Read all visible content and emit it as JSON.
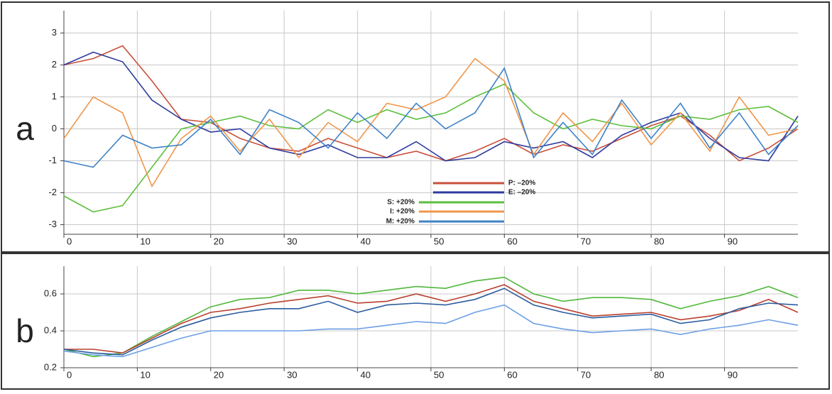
{
  "chart_data": [
    {
      "type": "line",
      "panel_label": "a",
      "x": [
        0,
        4,
        8,
        12,
        16,
        20,
        24,
        28,
        32,
        36,
        40,
        44,
        48,
        52,
        56,
        60,
        64,
        68,
        72,
        76,
        80,
        84,
        88,
        92,
        96,
        100
      ],
      "series": [
        {
          "name": "P: –20%",
          "color": "#c8503a",
          "values": [
            2.0,
            2.2,
            2.6,
            1.5,
            0.3,
            0.2,
            -0.3,
            -0.6,
            -0.7,
            -0.3,
            -0.6,
            -0.9,
            -0.7,
            -1.0,
            -0.7,
            -0.3,
            -0.8,
            -0.5,
            -0.7,
            -0.3,
            0.1,
            0.4,
            -0.2,
            -1.0,
            -0.6,
            0.0
          ]
        },
        {
          "name": "E: –20%",
          "color": "#2e3a9e",
          "values": [
            2.0,
            2.4,
            2.1,
            0.9,
            0.3,
            -0.1,
            0.0,
            -0.6,
            -0.8,
            -0.5,
            -0.9,
            -0.9,
            -0.4,
            -1.0,
            -0.9,
            -0.4,
            -0.6,
            -0.4,
            -0.9,
            -0.2,
            0.2,
            0.5,
            -0.3,
            -0.9,
            -1.0,
            0.4
          ]
        },
        {
          "name": "S: +20%",
          "color": "#5cbf3c",
          "values": [
            -2.1,
            -2.6,
            -2.4,
            -1.2,
            0.0,
            0.2,
            0.4,
            0.1,
            0.0,
            0.6,
            0.2,
            0.6,
            0.3,
            0.5,
            1.0,
            1.4,
            0.5,
            0.0,
            0.3,
            0.1,
            0.0,
            0.4,
            0.3,
            0.6,
            0.7,
            0.2
          ]
        },
        {
          "name": "I: +20%",
          "color": "#f0964a",
          "values": [
            -0.3,
            1.0,
            0.5,
            -1.8,
            -0.3,
            0.4,
            -0.7,
            0.3,
            -0.9,
            0.2,
            -0.4,
            0.8,
            0.6,
            1.0,
            2.2,
            1.5,
            -0.8,
            0.5,
            -0.4,
            0.8,
            -0.5,
            0.5,
            -0.7,
            1.0,
            -0.2,
            0.0
          ]
        },
        {
          "name": "M: +20%",
          "color": "#3f82c8",
          "values": [
            -1.0,
            -1.2,
            -0.2,
            -0.6,
            -0.5,
            0.3,
            -0.8,
            0.6,
            0.2,
            -0.6,
            0.5,
            -0.3,
            0.8,
            0.0,
            0.5,
            1.9,
            -0.9,
            0.2,
            -0.8,
            0.9,
            -0.3,
            0.8,
            -0.6,
            0.5,
            -0.8,
            0.1
          ]
        }
      ],
      "xlim": [
        0,
        100
      ],
      "xticks": [
        0,
        10,
        20,
        30,
        40,
        50,
        60,
        70,
        80,
        90
      ],
      "ylim": [
        -3.3,
        3.7
      ],
      "yticks": [
        -3,
        -2,
        -1,
        0,
        1,
        2,
        3
      ],
      "grid": true
    },
    {
      "type": "line",
      "panel_label": "b",
      "x": [
        0,
        4,
        8,
        12,
        16,
        20,
        24,
        28,
        32,
        36,
        40,
        44,
        48,
        52,
        56,
        60,
        64,
        68,
        72,
        76,
        80,
        84,
        88,
        92,
        96,
        100
      ],
      "series": [
        {
          "color": "#4fb83a",
          "values": [
            0.3,
            0.26,
            0.28,
            0.37,
            0.45,
            0.53,
            0.57,
            0.58,
            0.62,
            0.62,
            0.6,
            0.62,
            0.64,
            0.63,
            0.67,
            0.69,
            0.6,
            0.56,
            0.58,
            0.58,
            0.57,
            0.52,
            0.56,
            0.59,
            0.64,
            0.58
          ]
        },
        {
          "color": "#b8402e",
          "values": [
            0.3,
            0.3,
            0.28,
            0.36,
            0.44,
            0.5,
            0.52,
            0.55,
            0.57,
            0.59,
            0.55,
            0.56,
            0.6,
            0.56,
            0.6,
            0.65,
            0.56,
            0.52,
            0.48,
            0.49,
            0.5,
            0.46,
            0.48,
            0.51,
            0.57,
            0.5
          ]
        },
        {
          "color": "#2a5c9e",
          "values": [
            0.3,
            0.28,
            0.27,
            0.35,
            0.42,
            0.47,
            0.5,
            0.52,
            0.52,
            0.56,
            0.5,
            0.54,
            0.55,
            0.54,
            0.57,
            0.63,
            0.54,
            0.5,
            0.47,
            0.48,
            0.49,
            0.44,
            0.46,
            0.52,
            0.55,
            0.54
          ]
        },
        {
          "color": "#6d9fe6",
          "values": [
            0.29,
            0.27,
            0.26,
            0.31,
            0.36,
            0.4,
            0.4,
            0.4,
            0.4,
            0.41,
            0.41,
            0.43,
            0.45,
            0.44,
            0.5,
            0.54,
            0.44,
            0.41,
            0.39,
            0.4,
            0.41,
            0.38,
            0.41,
            0.43,
            0.46,
            0.43
          ]
        }
      ],
      "xlim": [
        0,
        100
      ],
      "xticks": [
        0,
        10,
        20,
        30,
        40,
        50,
        60,
        70,
        80,
        90
      ],
      "ylim": [
        0.2,
        0.75
      ],
      "yticks": [
        0.2,
        0.4,
        0.6
      ],
      "grid": true
    }
  ]
}
